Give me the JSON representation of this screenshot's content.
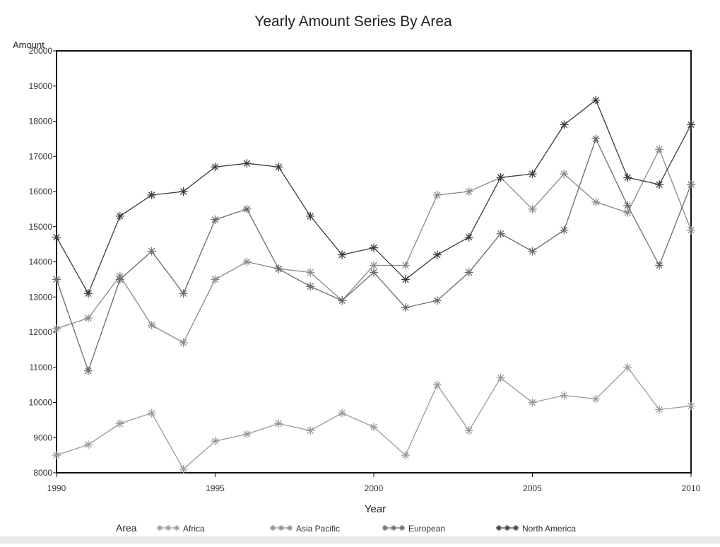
{
  "chart_data": {
    "type": "line",
    "title": "Yearly Amount Series By Area",
    "xlabel": "Year",
    "ylabel": "Amount",
    "xlim": [
      1990,
      2010
    ],
    "ylim": [
      8000,
      20000
    ],
    "x_ticks": [
      1990,
      1995,
      2000,
      2005,
      2010
    ],
    "y_ticks": [
      8000,
      9000,
      10000,
      11000,
      12000,
      13000,
      14000,
      15000,
      16000,
      17000,
      18000,
      19000,
      20000
    ],
    "grid": false,
    "legend": {
      "title": "Area",
      "position": "bottom"
    },
    "x": [
      1990,
      1991,
      1992,
      1993,
      1994,
      1995,
      1996,
      1997,
      1998,
      1999,
      2000,
      2001,
      2002,
      2003,
      2004,
      2005,
      2006,
      2007,
      2008,
      2009,
      2010
    ],
    "series": [
      {
        "name": "Africa",
        "color": "#9a9a9a",
        "values": [
          8500,
          8800,
          9400,
          9700,
          8100,
          8900,
          9100,
          9400,
          9200,
          9700,
          9300,
          8500,
          10500,
          9200,
          10700,
          10000,
          10200,
          10100,
          11000,
          9800,
          9900
        ]
      },
      {
        "name": "Asia Pacific",
        "color": "#8a8a8a",
        "values": [
          12100,
          12400,
          13600,
          12200,
          11700,
          13500,
          14000,
          13800,
          13700,
          12900,
          13900,
          13900,
          15900,
          16000,
          16400,
          15500,
          16500,
          15700,
          15400,
          17200,
          14900
        ]
      },
      {
        "name": "European",
        "color": "#6a6a6a",
        "values": [
          13500,
          10900,
          13500,
          14300,
          13100,
          15200,
          15500,
          13800,
          13300,
          12900,
          13700,
          12700,
          12900,
          13700,
          14800,
          14300,
          14900,
          17500,
          15600,
          13900,
          16200
        ]
      },
      {
        "name": "North America",
        "color": "#3a3a3a",
        "values": [
          14700,
          13100,
          15300,
          15900,
          16000,
          16700,
          16800,
          16700,
          15300,
          14200,
          14400,
          13500,
          14200,
          14700,
          16400,
          16500,
          17900,
          18600,
          16400,
          16200,
          17900
        ]
      }
    ]
  }
}
